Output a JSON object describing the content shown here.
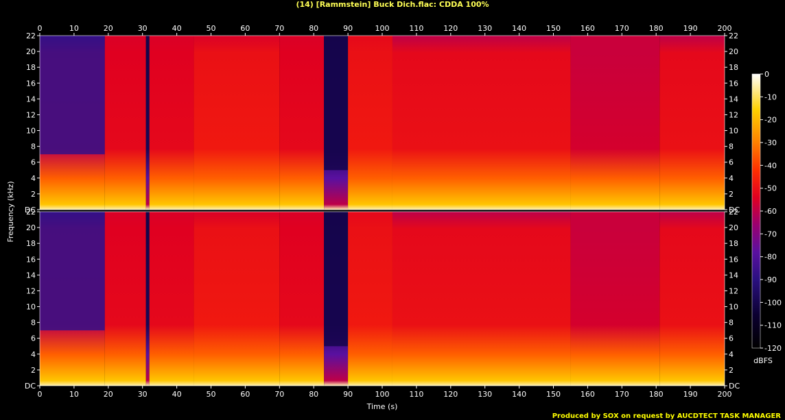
{
  "header": {
    "title": "(14) [Rammstein] Buck Dich.flac: CDDA 100%"
  },
  "footer": {
    "credit": "Produced by SOX on request by AUCDTECT TASK MANAGER"
  },
  "colors": {
    "title": "#ffff55",
    "footer": "#ffff00",
    "axis": "#ffffff",
    "background": "#000000"
  },
  "chart_data": {
    "type": "heatmap",
    "title": "(14) [Rammstein] Buck Dich.flac: CDDA 100%",
    "xlabel": "Time (s)",
    "ylabel": "Frequency (kHz)",
    "xlim": [
      0,
      200
    ],
    "ylim": [
      0,
      22
    ],
    "x_ticks": [
      "0",
      "10",
      "20",
      "30",
      "40",
      "50",
      "60",
      "70",
      "80",
      "90",
      "100",
      "110",
      "120",
      "130",
      "140",
      "150",
      "160",
      "170",
      "180",
      "190",
      "200"
    ],
    "y_ticks": [
      "DC",
      "2",
      "4",
      "6",
      "8",
      "10",
      "12",
      "14",
      "16",
      "18",
      "20",
      "22"
    ],
    "channels": [
      "top",
      "bottom"
    ],
    "colorbar": {
      "label": "dBFS",
      "ticks": [
        "0",
        "-10",
        "-20",
        "-30",
        "-40",
        "-50",
        "-60",
        "-70",
        "-80",
        "-90",
        "-100",
        "-110",
        "-120"
      ],
      "range": [
        -120,
        0
      ]
    },
    "segments": [
      {
        "start": 0,
        "end": 19,
        "low_cut_khz": 7,
        "top_db": -88,
        "fill_db": -60
      },
      {
        "start": 19,
        "end": 31,
        "low_cut_khz": 22,
        "top_db": -55,
        "fill_db": -52
      },
      {
        "start": 31,
        "end": 32,
        "low_cut_khz": 22,
        "top_db": -100,
        "fill_db": -98
      },
      {
        "start": 32,
        "end": 45,
        "low_cut_khz": 22,
        "top_db": -55,
        "fill_db": -52
      },
      {
        "start": 45,
        "end": 70,
        "low_cut_khz": 22,
        "top_db": -55,
        "fill_db": -48
      },
      {
        "start": 70,
        "end": 83,
        "low_cut_khz": 22,
        "top_db": -55,
        "fill_db": -52
      },
      {
        "start": 83,
        "end": 90,
        "low_cut_khz": 5,
        "top_db": -100,
        "fill_db": -96
      },
      {
        "start": 90,
        "end": 103,
        "low_cut_khz": 22,
        "top_db": -52,
        "fill_db": -48
      },
      {
        "start": 103,
        "end": 155,
        "low_cut_khz": 22,
        "top_db": -60,
        "fill_db": -50
      },
      {
        "start": 155,
        "end": 181,
        "low_cut_khz": 22,
        "top_db": -58,
        "fill_db": -56
      },
      {
        "start": 181,
        "end": 200,
        "low_cut_khz": 22,
        "top_db": -60,
        "fill_db": -50
      }
    ]
  }
}
